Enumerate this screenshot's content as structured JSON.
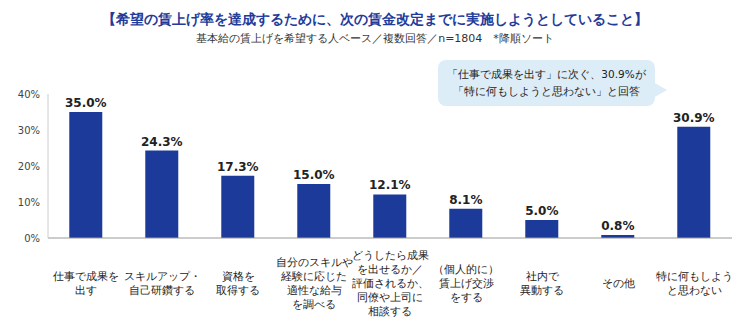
{
  "chart_data": {
    "type": "bar",
    "title": "【希望の賃上げ率を達成するために、次の賃金改定までに実施しようとしていること】",
    "subtitle": "基本給の賃上げを希望する人ベース／複数回答／n=1804　*降順ソート",
    "categories": [
      "仕事で成果を\n出す",
      "スキルアップ・\n自己研鑽する",
      "資格を\n取得する",
      "自分のスキルや\n経験に応じた\n適性な給与\nを調べる",
      "どうしたら成果\nを出せるか／\n評価されるか、\n同僚や上司に\n相談する",
      "（個人的に）\n賃上げ交渉\nをする",
      "社内で\n異動する",
      "その他",
      "特に何もしよう\nと思わない"
    ],
    "values": [
      35.0,
      24.3,
      17.3,
      15.0,
      12.1,
      8.1,
      5.0,
      0.8,
      30.9
    ],
    "value_labels": [
      "35.0%",
      "24.3%",
      "17.3%",
      "15.0%",
      "12.1%",
      "8.1%",
      "5.0%",
      "0.8%",
      "30.9%"
    ],
    "data_labels": true,
    "color": "#1b3a9a",
    "ylim": [
      0,
      40
    ],
    "yticks": [
      {
        "value": 0,
        "label": "0%"
      },
      {
        "value": 10,
        "label": "10%"
      },
      {
        "value": 20,
        "label": "20%"
      },
      {
        "value": 30,
        "label": "30%"
      },
      {
        "value": 40,
        "label": "40%"
      }
    ],
    "grid": false,
    "annotations": [
      "「仕事で成果を出す」に次ぐ、30.9%が\n「特に何もしようと思わない」と回答"
    ]
  }
}
